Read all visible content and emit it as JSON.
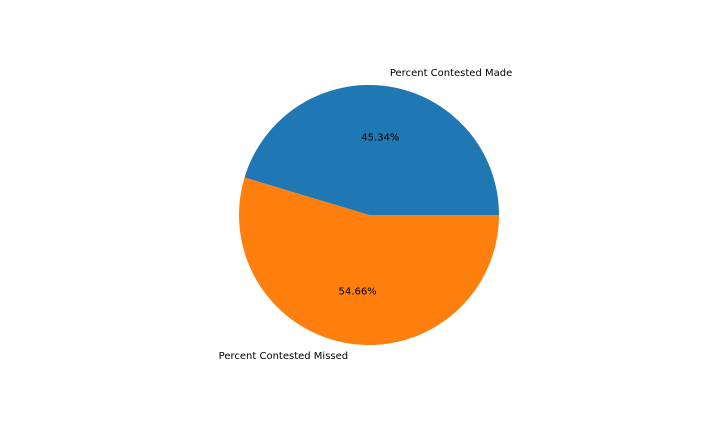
{
  "chart_data": {
    "type": "pie",
    "title": "",
    "slices": [
      {
        "label": "Percent Contested Made",
        "value": 45.34,
        "pct_label": "45.34%",
        "color": "#1f77b4"
      },
      {
        "label": "Percent Contested Missed",
        "value": 54.66,
        "pct_label": "54.66%",
        "color": "#ff7f0e"
      }
    ],
    "start_angle_deg": 0,
    "direction": "counterclockwise",
    "legend": "none"
  }
}
